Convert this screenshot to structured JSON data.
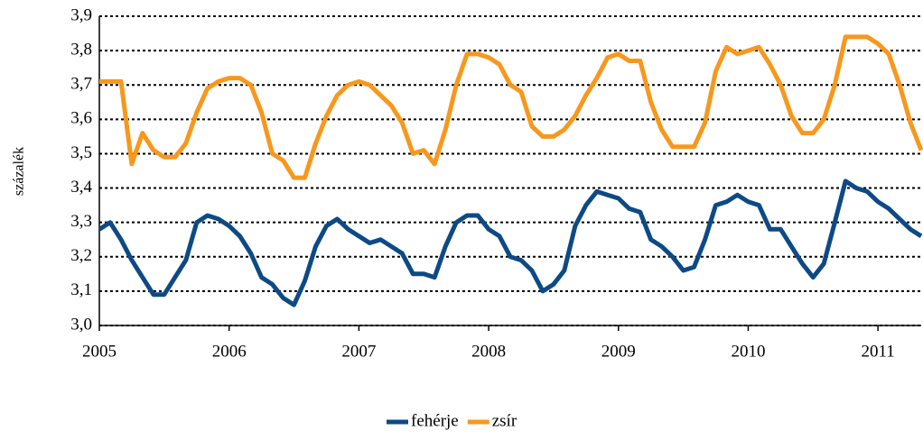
{
  "chart_data": {
    "type": "line",
    "y_label": "százalék",
    "x": [
      2005,
      2005.083,
      2005.167,
      2005.25,
      2005.333,
      2005.417,
      2005.5,
      2005.583,
      2005.667,
      2005.75,
      2005.833,
      2005.917,
      2006,
      2006.083,
      2006.167,
      2006.25,
      2006.333,
      2006.417,
      2006.5,
      2006.583,
      2006.667,
      2006.75,
      2006.833,
      2006.917,
      2007,
      2007.083,
      2007.167,
      2007.25,
      2007.333,
      2007.417,
      2007.5,
      2007.583,
      2007.667,
      2007.75,
      2007.833,
      2007.917,
      2008,
      2008.083,
      2008.167,
      2008.25,
      2008.333,
      2008.417,
      2008.5,
      2008.583,
      2008.667,
      2008.75,
      2008.833,
      2008.917,
      2009,
      2009.083,
      2009.167,
      2009.25,
      2009.333,
      2009.417,
      2009.5,
      2009.583,
      2009.667,
      2009.75,
      2009.833,
      2009.917,
      2010,
      2010.083,
      2010.167,
      2010.25,
      2010.333,
      2010.417,
      2010.5,
      2010.583,
      2010.667,
      2010.75,
      2010.833,
      2010.917,
      2011,
      2011.083,
      2011.167,
      2011.25,
      2011.333
    ],
    "series": [
      {
        "name": "fehérje",
        "color": "#0d4a85",
        "values": [
          3.28,
          3.3,
          3.25,
          3.19,
          3.14,
          3.09,
          3.09,
          3.14,
          3.19,
          3.3,
          3.32,
          3.31,
          3.29,
          3.26,
          3.21,
          3.14,
          3.12,
          3.08,
          3.06,
          3.13,
          3.23,
          3.29,
          3.31,
          3.28,
          3.26,
          3.24,
          3.25,
          3.23,
          3.21,
          3.15,
          3.15,
          3.14,
          3.23,
          3.3,
          3.32,
          3.32,
          3.28,
          3.26,
          3.2,
          3.19,
          3.16,
          3.1,
          3.12,
          3.16,
          3.29,
          3.35,
          3.39,
          3.38,
          3.37,
          3.34,
          3.33,
          3.25,
          3.23,
          3.2,
          3.16,
          3.17,
          3.25,
          3.35,
          3.36,
          3.38,
          3.36,
          3.35,
          3.28,
          3.28,
          3.23,
          3.18,
          3.14,
          3.18,
          3.3,
          3.42,
          3.4,
          3.39,
          3.36,
          3.34,
          3.31,
          3.28,
          3.26
        ]
      },
      {
        "name": "zsír",
        "color": "#f7981d",
        "values": [
          3.71,
          3.71,
          3.71,
          3.47,
          3.56,
          3.51,
          3.49,
          3.49,
          3.53,
          3.62,
          3.69,
          3.71,
          3.72,
          3.72,
          3.7,
          3.62,
          3.5,
          3.48,
          3.43,
          3.43,
          3.53,
          3.61,
          3.67,
          3.7,
          3.71,
          3.7,
          3.67,
          3.64,
          3.59,
          3.5,
          3.51,
          3.47,
          3.57,
          3.7,
          3.79,
          3.79,
          3.78,
          3.76,
          3.7,
          3.68,
          3.58,
          3.55,
          3.55,
          3.57,
          3.61,
          3.67,
          3.72,
          3.78,
          3.79,
          3.77,
          3.77,
          3.65,
          3.57,
          3.52,
          3.52,
          3.52,
          3.59,
          3.74,
          3.81,
          3.79,
          3.8,
          3.81,
          3.76,
          3.7,
          3.61,
          3.56,
          3.56,
          3.6,
          3.7,
          3.84,
          3.84,
          3.84,
          3.82,
          3.79,
          3.7,
          3.59,
          3.51
        ]
      }
    ],
    "xlim": [
      2005,
      2011.333
    ],
    "xticks": [
      2005,
      2006,
      2007,
      2008,
      2009,
      2010,
      2011
    ],
    "ylim": [
      3.0,
      3.9
    ],
    "yticks": [
      {
        "value": 3.0,
        "label": "3,0"
      },
      {
        "value": 3.1,
        "label": "3,1"
      },
      {
        "value": 3.2,
        "label": "3,2"
      },
      {
        "value": 3.3,
        "label": "3,3"
      },
      {
        "value": 3.4,
        "label": "3,4"
      },
      {
        "value": 3.5,
        "label": "3,5"
      },
      {
        "value": 3.6,
        "label": "3,6"
      },
      {
        "value": 3.7,
        "label": "3,7"
      },
      {
        "value": 3.8,
        "label": "3,8"
      },
      {
        "value": 3.9,
        "label": "3,9"
      }
    ],
    "grid": true,
    "legend": "bottom"
  }
}
